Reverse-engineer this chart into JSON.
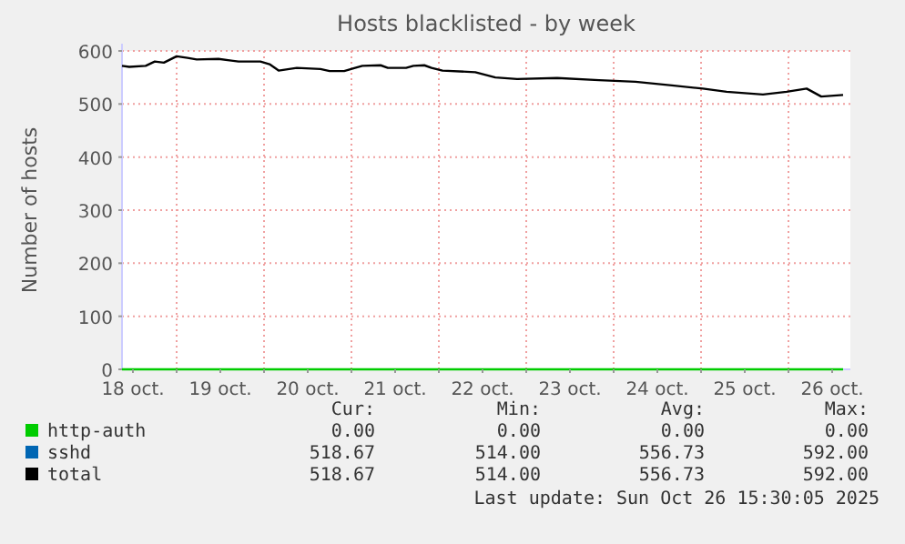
{
  "chart_data": {
    "type": "line",
    "title": "Hosts blacklisted - by week",
    "ylabel": "Number of hosts",
    "xlim": [
      "2025-10-18T09:00",
      "2025-10-26T17:00"
    ],
    "xticks": [
      {
        "value": "2025-10-18T12:00",
        "label": "18 oct."
      },
      {
        "value": "2025-10-19T00:00",
        "label": null
      },
      {
        "value": "2025-10-19T12:00",
        "label": "19 oct."
      },
      {
        "value": "2025-10-20T00:00",
        "label": null
      },
      {
        "value": "2025-10-20T12:00",
        "label": "20 oct."
      },
      {
        "value": "2025-10-21T00:00",
        "label": null
      },
      {
        "value": "2025-10-21T12:00",
        "label": "21 oct."
      },
      {
        "value": "2025-10-22T00:00",
        "label": null
      },
      {
        "value": "2025-10-22T12:00",
        "label": "22 oct."
      },
      {
        "value": "2025-10-23T00:00",
        "label": null
      },
      {
        "value": "2025-10-23T12:00",
        "label": "23 oct."
      },
      {
        "value": "2025-10-24T00:00",
        "label": null
      },
      {
        "value": "2025-10-24T12:00",
        "label": "24 oct."
      },
      {
        "value": "2025-10-25T00:00",
        "label": null
      },
      {
        "value": "2025-10-25T12:00",
        "label": "25 oct."
      },
      {
        "value": "2025-10-26T00:00",
        "label": null
      },
      {
        "value": "2025-10-26T12:00",
        "label": "26 oct."
      }
    ],
    "ylim": [
      0,
      600
    ],
    "yticks": [
      0,
      100,
      200,
      300,
      400,
      500,
      600
    ],
    "grid": true,
    "legend": "bottom",
    "series": [
      {
        "name": "http-auth",
        "color": "#00cc00",
        "x": [
          "2025-10-18T09:00",
          "2025-10-26T15:00"
        ],
        "values": [
          0,
          0
        ]
      },
      {
        "name": "sshd",
        "color": "#0066b3"
      },
      {
        "name": "total",
        "color": "#000000",
        "x": [
          "2025-10-18T09:00",
          "2025-10-18T11:00",
          "2025-10-18T15:30",
          "2025-10-18T18:00",
          "2025-10-18T20:30",
          "2025-10-19T00:00",
          "2025-10-19T03:00",
          "2025-10-19T05:30",
          "2025-10-19T11:30",
          "2025-10-19T17:00",
          "2025-10-19T23:00",
          "2025-10-20T01:30",
          "2025-10-20T04:00",
          "2025-10-20T09:00",
          "2025-10-20T15:30",
          "2025-10-20T18:00",
          "2025-10-20T22:00",
          "2025-10-21T01:00",
          "2025-10-21T03:00",
          "2025-10-21T08:00",
          "2025-10-21T10:00",
          "2025-10-21T15:00",
          "2025-10-21T17:00",
          "2025-10-21T20:00",
          "2025-10-21T22:00",
          "2025-10-22T01:00",
          "2025-10-22T10:00",
          "2025-10-22T15:30",
          "2025-10-22T21:30",
          "2025-10-23T08:30",
          "2025-10-23T20:00",
          "2025-10-24T06:00",
          "2025-10-24T16:00",
          "2025-10-25T00:30",
          "2025-10-25T07:00",
          "2025-10-25T17:00",
          "2025-10-25T23:30",
          "2025-10-26T05:00",
          "2025-10-26T09:00",
          "2025-10-26T15:00"
        ],
        "values": [
          572,
          570,
          572,
          580,
          578,
          590,
          587,
          584,
          585,
          580,
          580,
          575,
          563,
          568,
          566,
          562,
          562,
          568,
          572,
          573,
          568,
          568,
          572,
          573,
          568,
          563,
          560,
          550,
          547,
          549,
          545,
          542,
          535,
          529,
          523,
          518,
          523,
          529,
          514,
          517
        ]
      }
    ],
    "annotations": [
      "Cur:",
      "Min:",
      "Avg:",
      "Max:",
      "0.00",
      "0.00",
      "0.00",
      "0.00",
      "518.67",
      "514.00",
      "556.73",
      "592.00",
      "518.67",
      "514.00",
      "556.73",
      "592.00",
      "Last update: Sun Oct 26 15:30:05 2025"
    ]
  }
}
